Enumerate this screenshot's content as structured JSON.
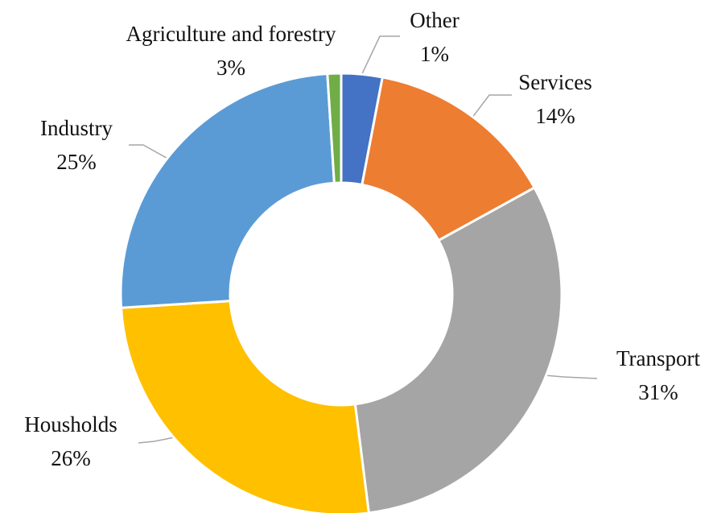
{
  "chart_data": {
    "type": "pie",
    "categories": [
      "Agriculture and forestry",
      "Services",
      "Transport",
      "Housholds",
      "Industry",
      "Other"
    ],
    "values": [
      3,
      14,
      31,
      26,
      25,
      1
    ],
    "value_labels": [
      "3%",
      "14%",
      "31%",
      "26%",
      "25%",
      "1%"
    ],
    "colors": [
      "#4472c4",
      "#ed7d31",
      "#a5a5a5",
      "#ffc000",
      "#5b9bd5",
      "#70ad47"
    ]
  }
}
